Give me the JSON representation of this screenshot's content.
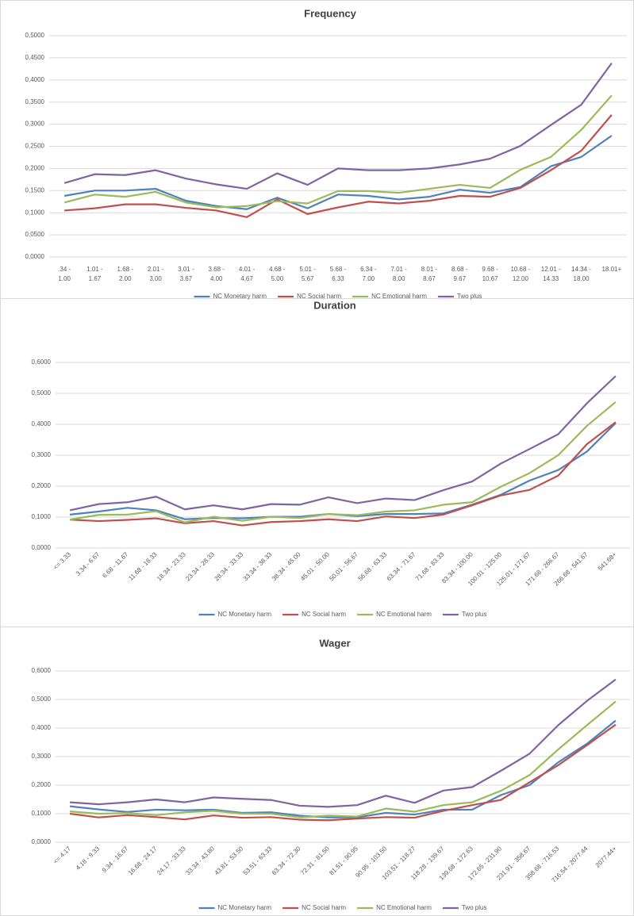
{
  "chart_data": [
    {
      "type": "line",
      "title": "Frequency",
      "categories": [
        ".34 - 1.00",
        "1.01 - 1.67",
        "1.68 - 2.00",
        "2.01 - 3.00",
        "3.01 - 3.67",
        "3.68 - 4.00",
        "4.01 - 4.67",
        "4.68 - 5.00",
        "5.01 - 5.67",
        "5.68 - 6.33",
        "6.34 - 7.00",
        "7.01 - 8.00",
        "8.01 - 8.67",
        "8.68 - 9.67",
        "9.68 - 10.67",
        "10.68 - 12.00",
        "12.01 - 14.33",
        "14.34 - 18.00",
        "18.01+"
      ],
      "series": [
        {
          "name": "NC Monetary harm",
          "color": "#4f81bd",
          "values": [
            0.138,
            0.15,
            0.15,
            0.154,
            0.127,
            0.115,
            0.108,
            0.134,
            0.11,
            0.141,
            0.138,
            0.13,
            0.136,
            0.152,
            0.145,
            0.158,
            0.205,
            0.226,
            0.274
          ]
        },
        {
          "name": "NC Social harm",
          "color": "#c0504d",
          "values": [
            0.105,
            0.11,
            0.119,
            0.119,
            0.111,
            0.105,
            0.09,
            0.13,
            0.097,
            0.112,
            0.125,
            0.121,
            0.127,
            0.138,
            0.136,
            0.156,
            0.196,
            0.24,
            0.321
          ]
        },
        {
          "name": "NC Emotional harm",
          "color": "#9bbb59",
          "values": [
            0.123,
            0.141,
            0.136,
            0.147,
            0.123,
            0.112,
            0.115,
            0.126,
            0.121,
            0.149,
            0.149,
            0.145,
            0.154,
            0.163,
            0.156,
            0.197,
            0.226,
            0.287,
            0.365
          ]
        },
        {
          "name": "Two plus",
          "color": "#8064a2",
          "values": [
            0.167,
            0.187,
            0.185,
            0.196,
            0.177,
            0.164,
            0.154,
            0.189,
            0.163,
            0.2,
            0.196,
            0.196,
            0.2,
            0.209,
            0.222,
            0.251,
            0.298,
            0.344,
            0.438
          ]
        }
      ],
      "ylim": [
        0,
        0.5
      ],
      "yticks": [
        {
          "value": 0,
          "label": "0,0000"
        },
        {
          "value": 0.05,
          "label": "0,0500"
        },
        {
          "value": 0.1,
          "label": "0,1000"
        },
        {
          "value": 0.15,
          "label": "0,1500"
        },
        {
          "value": 0.2,
          "label": "0,2000"
        },
        {
          "value": 0.25,
          "label": "0,2500"
        },
        {
          "value": 0.3,
          "label": "0,3000"
        },
        {
          "value": 0.35,
          "label": "0,3500"
        },
        {
          "value": 0.4,
          "label": "0,4000"
        },
        {
          "value": 0.45,
          "label": "0,4500"
        },
        {
          "value": 0.5,
          "label": "0,5000"
        }
      ],
      "grid": true,
      "legend": "bottom"
    },
    {
      "type": "line",
      "title": "Duration",
      "categories": [
        "<= 3.33",
        "3.34 - 6.67",
        "6.68 - 11.67",
        "11.68 - 18.33",
        "18.34 - 23.33",
        "23.34 - 28.33",
        "28.34 - 33.33",
        "33.34 - 38.33",
        "38.34 - 45.00",
        "45.01 - 50.00",
        "50.01 - 56.67",
        "56.68 - 63.33",
        "63.34 - 71.67",
        "71.68 - 83.33",
        "83.34 - 100.00",
        "100.01 - 125.00",
        "125.01 - 171.67",
        "171.68 - 266.67",
        "266.68 - 541.67",
        "541.68+"
      ],
      "series": [
        {
          "name": "NC Monetary harm",
          "color": "#4f81bd",
          "values": [
            0.108,
            0.118,
            0.13,
            0.122,
            0.093,
            0.097,
            0.096,
            0.101,
            0.101,
            0.11,
            0.103,
            0.11,
            0.11,
            0.112,
            0.14,
            0.172,
            0.218,
            0.252,
            0.312,
            0.404
          ]
        },
        {
          "name": "NC Social harm",
          "color": "#c0504d",
          "values": [
            0.092,
            0.087,
            0.091,
            0.096,
            0.08,
            0.087,
            0.073,
            0.084,
            0.087,
            0.093,
            0.087,
            0.102,
            0.097,
            0.108,
            0.138,
            0.17,
            0.188,
            0.234,
            0.336,
            0.407
          ]
        },
        {
          "name": "NC Emotional harm",
          "color": "#9bbb59",
          "values": [
            0.092,
            0.107,
            0.108,
            0.119,
            0.083,
            0.101,
            0.088,
            0.101,
            0.097,
            0.11,
            0.106,
            0.118,
            0.122,
            0.14,
            0.148,
            0.198,
            0.242,
            0.3,
            0.395,
            0.472
          ]
        },
        {
          "name": "Two plus",
          "color": "#8064a2",
          "values": [
            0.122,
            0.142,
            0.148,
            0.166,
            0.125,
            0.138,
            0.125,
            0.142,
            0.14,
            0.164,
            0.145,
            0.16,
            0.155,
            0.187,
            0.215,
            0.273,
            0.32,
            0.368,
            0.468,
            0.556
          ]
        }
      ],
      "ylim": [
        0,
        0.6
      ],
      "yticks": [
        {
          "value": 0,
          "label": "0,0000"
        },
        {
          "value": 0.1,
          "label": "0,1000"
        },
        {
          "value": 0.2,
          "label": "0,2000"
        },
        {
          "value": 0.3,
          "label": "0,3000"
        },
        {
          "value": 0.4,
          "label": "0,4000"
        },
        {
          "value": 0.5,
          "label": "0,5000"
        },
        {
          "value": 0.6,
          "label": "0,6000"
        }
      ],
      "grid": true,
      "legend": "bottom"
    },
    {
      "type": "line",
      "title": "Wager",
      "categories": [
        "<= 4.17",
        "4.18 - 9.33",
        "9.34 - 16.67",
        "16.68 - 24.17",
        "24.17 - 33.33",
        "33.34 - 43.80",
        "43.81 - 53.50",
        "53.51 - 63.33",
        "63.34 - 72.30",
        "72.31 - 81.50",
        "81.51 - 90.95",
        "90.95 - 103.50",
        "103.51 - 118.27",
        "118.28 - 139.67",
        "139.68 - 172.63",
        "172.65 - 231.90",
        "231.91 - 358.67",
        "358.68 - 716.53",
        "716.54 - 2077.44",
        "2077.44+"
      ],
      "series": [
        {
          "name": "NC Monetary harm",
          "color": "#4f81bd",
          "values": [
            0.126,
            0.115,
            0.106,
            0.114,
            0.112,
            0.114,
            0.103,
            0.105,
            0.093,
            0.087,
            0.087,
            0.103,
            0.097,
            0.114,
            0.114,
            0.165,
            0.2,
            0.28,
            0.345,
            0.426
          ]
        },
        {
          "name": "NC Social harm",
          "color": "#c0504d",
          "values": [
            0.1,
            0.087,
            0.095,
            0.088,
            0.08,
            0.094,
            0.086,
            0.088,
            0.079,
            0.077,
            0.083,
            0.088,
            0.086,
            0.11,
            0.13,
            0.148,
            0.21,
            0.27,
            0.34,
            0.412
          ]
        },
        {
          "name": "NC Emotional harm",
          "color": "#9bbb59",
          "values": [
            0.108,
            0.1,
            0.102,
            0.095,
            0.105,
            0.11,
            0.1,
            0.1,
            0.087,
            0.093,
            0.09,
            0.118,
            0.107,
            0.13,
            0.14,
            0.18,
            0.235,
            0.325,
            0.41,
            0.493
          ]
        },
        {
          "name": "Two plus",
          "color": "#8064a2",
          "values": [
            0.14,
            0.133,
            0.14,
            0.15,
            0.14,
            0.157,
            0.152,
            0.148,
            0.128,
            0.124,
            0.13,
            0.163,
            0.138,
            0.181,
            0.193,
            0.25,
            0.31,
            0.41,
            0.495,
            0.57
          ]
        }
      ],
      "ylim": [
        0,
        0.6
      ],
      "yticks": [
        {
          "value": 0,
          "label": "0,0000"
        },
        {
          "value": 0.1,
          "label": "0,1000"
        },
        {
          "value": 0.2,
          "label": "0,2000"
        },
        {
          "value": 0.3,
          "label": "0,3000"
        },
        {
          "value": 0.4,
          "label": "0,4000"
        },
        {
          "value": 0.5,
          "label": "0,5000"
        },
        {
          "value": 0.6,
          "label": "0,6000"
        }
      ],
      "grid": true,
      "legend": "bottom"
    }
  ]
}
